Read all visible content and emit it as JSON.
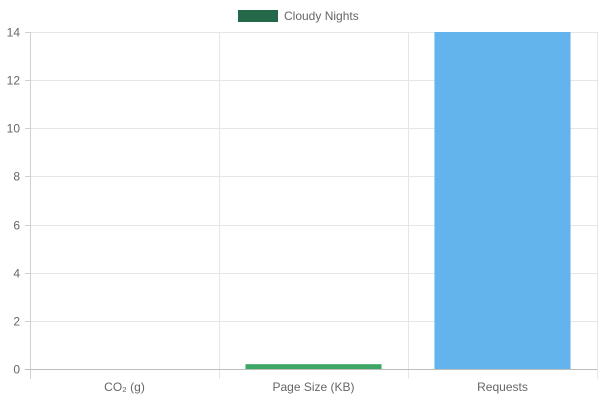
{
  "chart_data": {
    "type": "bar",
    "categories": [
      "CO₂ (g)",
      "Page Size (KB)",
      "Requests"
    ],
    "series": [
      {
        "name": "Cloudy Nights",
        "values": [
          0.0,
          0.2,
          14
        ],
        "legend_color": "#236848",
        "bar_colors": [
          "#236848",
          "#3ca665",
          "#63b3ed"
        ]
      }
    ],
    "ylim": [
      0,
      14
    ],
    "yticks": [
      0,
      2,
      4,
      6,
      8,
      10,
      12,
      14
    ],
    "grid": true,
    "legend_position": "top-center",
    "title": "",
    "xlabel": "",
    "ylabel": ""
  }
}
